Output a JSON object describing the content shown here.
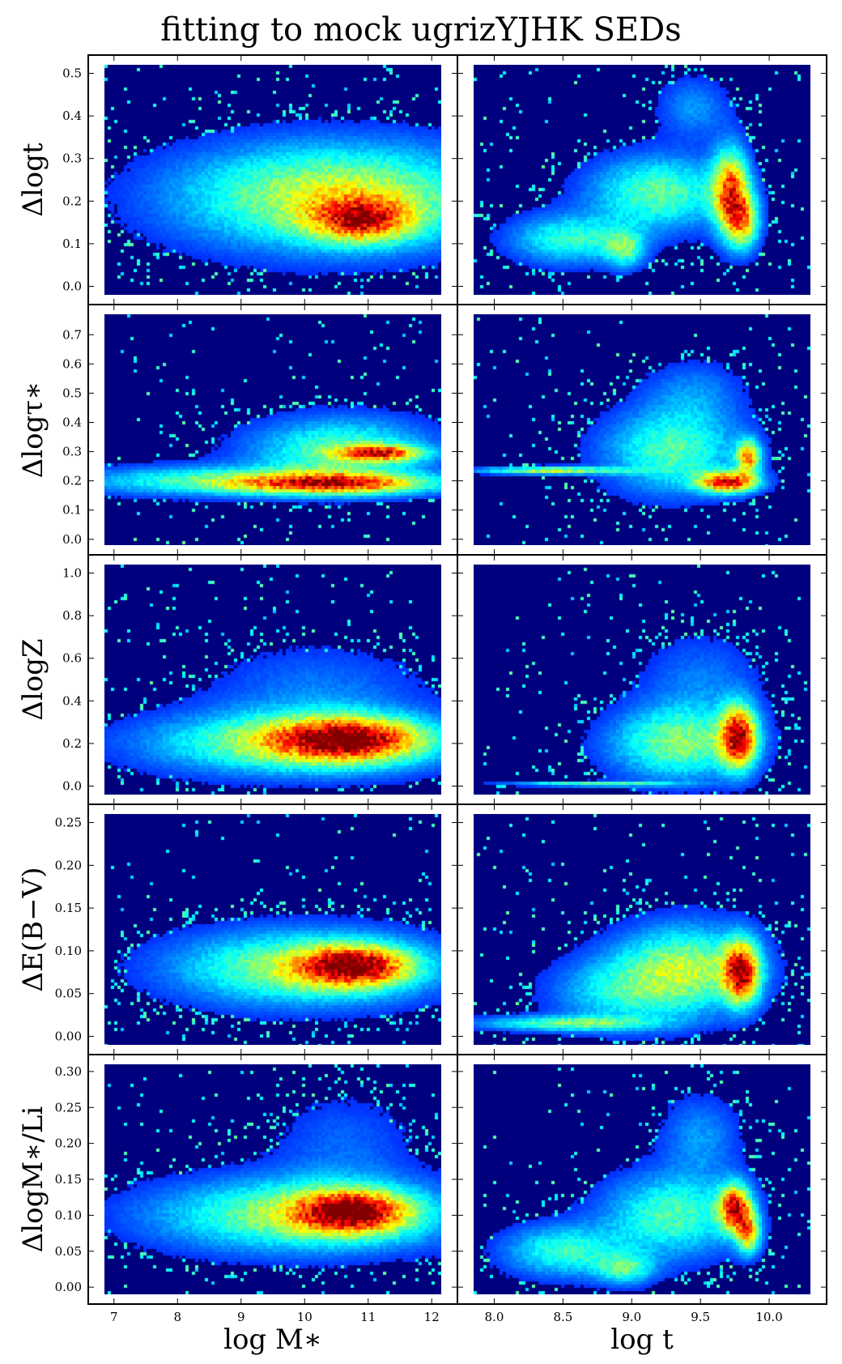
{
  "chart_data": {
    "title": "fitting to mock ugrizYJHK SEDs",
    "type": "heatmap",
    "colormap": [
      "#00007f",
      "#0000ff",
      "#00ffff",
      "#ffff00",
      "#ff0000",
      "#7f0000"
    ],
    "background": "#00007f",
    "grid": false,
    "columns": [
      {
        "xlabel": "log M∗",
        "xlim": [
          6.85,
          12.15
        ],
        "xticks": [
          7,
          8,
          9,
          10,
          11,
          12
        ],
        "xtick_labels": [
          "7",
          "8",
          "9",
          "10",
          "11",
          "12"
        ]
      },
      {
        "xlabel": "log t",
        "xlim": [
          7.85,
          10.3
        ],
        "xticks": [
          8.0,
          8.5,
          9.0,
          9.5,
          10.0
        ],
        "xtick_labels": [
          "8.0",
          "8.5",
          "9.0",
          "9.5",
          "10.0"
        ]
      }
    ],
    "rows": [
      {
        "ylabel": "Δlogt",
        "ylim": [
          -0.02,
          0.52
        ],
        "yticks": [
          0.0,
          0.1,
          0.2,
          0.3,
          0.4,
          0.5
        ],
        "ytick_labels": [
          "0.0",
          "0.1",
          "0.2",
          "0.3",
          "0.4",
          "0.5"
        ]
      },
      {
        "ylabel": "Δlogτ∗",
        "ylim": [
          -0.02,
          0.77
        ],
        "yticks": [
          0.0,
          0.1,
          0.2,
          0.3,
          0.4,
          0.5,
          0.6,
          0.7
        ],
        "ytick_labels": [
          "0.0",
          "0.1",
          "0.2",
          "0.3",
          "0.4",
          "0.5",
          "0.6",
          "0.7"
        ]
      },
      {
        "ylabel": "ΔlogZ",
        "ylim": [
          -0.04,
          1.04
        ],
        "yticks": [
          0.0,
          0.2,
          0.4,
          0.6,
          0.8,
          1.0
        ],
        "ytick_labels": [
          "0.0",
          "0.2",
          "0.4",
          "0.6",
          "0.8",
          "1.0"
        ]
      },
      {
        "ylabel": "ΔE(B−V)",
        "ylim": [
          -0.01,
          0.26
        ],
        "yticks": [
          0.0,
          0.05,
          0.1,
          0.15,
          0.2,
          0.25
        ],
        "ytick_labels": [
          "0.00",
          "0.05",
          "0.10",
          "0.15",
          "0.20",
          "0.25"
        ]
      },
      {
        "ylabel": "ΔlogM∗/Li",
        "ylim": [
          -0.01,
          0.31
        ],
        "yticks": [
          0.0,
          0.05,
          0.1,
          0.15,
          0.2,
          0.25,
          0.3
        ],
        "ytick_labels": [
          "0.00",
          "0.05",
          "0.10",
          "0.15",
          "0.20",
          "0.25",
          "0.30"
        ]
      }
    ],
    "panels": [
      {
        "row": 0,
        "col": 0,
        "blobs": [
          {
            "x": 10.5,
            "y": 0.21,
            "sx": 1.7,
            "sy": 0.085,
            "w": 0.48
          },
          {
            "x": 10.9,
            "y": 0.155,
            "sx": 0.55,
            "sy": 0.035,
            "w": 0.5
          }
        ]
      },
      {
        "row": 0,
        "col": 1,
        "blobs": [
          {
            "x": 9.72,
            "y": 0.22,
            "sx": 0.09,
            "sy": 0.07,
            "w": 0.62
          },
          {
            "x": 9.82,
            "y": 0.15,
            "sx": 0.08,
            "sy": 0.045,
            "w": 0.42
          },
          {
            "x": 9.2,
            "y": 0.22,
            "sx": 0.35,
            "sy": 0.06,
            "w": 0.35
          },
          {
            "x": 8.55,
            "y": 0.11,
            "sx": 0.3,
            "sy": 0.04,
            "w": 0.3
          },
          {
            "x": 8.95,
            "y": 0.085,
            "sx": 0.1,
            "sy": 0.03,
            "w": 0.28
          },
          {
            "x": 9.45,
            "y": 0.42,
            "sx": 0.18,
            "sy": 0.05,
            "w": 0.15
          }
        ]
      },
      {
        "row": 1,
        "col": 0,
        "blobs": [
          {
            "x": 10.5,
            "y": 0.19,
            "sx": 1.1,
            "sy": 0.025,
            "w": 0.6
          },
          {
            "x": 11.2,
            "y": 0.295,
            "sx": 0.45,
            "sy": 0.018,
            "w": 0.55
          },
          {
            "x": 8.5,
            "y": 0.2,
            "sx": 1.5,
            "sy": 0.035,
            "w": 0.3
          },
          {
            "x": 10.6,
            "y": 0.3,
            "sx": 1.0,
            "sy": 0.08,
            "w": 0.35
          }
        ]
      },
      {
        "row": 1,
        "col": 1,
        "blobs": [
          {
            "x": 9.7,
            "y": 0.195,
            "sx": 0.15,
            "sy": 0.025,
            "w": 0.7
          },
          {
            "x": 9.85,
            "y": 0.28,
            "sx": 0.06,
            "sy": 0.04,
            "w": 0.55
          },
          {
            "x": 9.3,
            "y": 0.3,
            "sx": 0.35,
            "sy": 0.1,
            "w": 0.33
          },
          {
            "x": 8.4,
            "y": 0.235,
            "sx": 0.35,
            "sy": 0.009,
            "w": 0.45
          },
          {
            "x": 9.45,
            "y": 0.5,
            "sx": 0.25,
            "sy": 0.08,
            "w": 0.13
          }
        ]
      },
      {
        "row": 2,
        "col": 0,
        "blobs": [
          {
            "x": 10.7,
            "y": 0.22,
            "sx": 0.8,
            "sy": 0.07,
            "w": 0.58
          },
          {
            "x": 9.9,
            "y": 0.2,
            "sx": 1.6,
            "sy": 0.1,
            "w": 0.42
          },
          {
            "x": 10.2,
            "y": 0.45,
            "sx": 1.2,
            "sy": 0.15,
            "w": 0.12
          }
        ]
      },
      {
        "row": 2,
        "col": 1,
        "blobs": [
          {
            "x": 9.78,
            "y": 0.23,
            "sx": 0.09,
            "sy": 0.1,
            "w": 0.72
          },
          {
            "x": 9.35,
            "y": 0.2,
            "sx": 0.35,
            "sy": 0.12,
            "w": 0.38
          },
          {
            "x": 8.7,
            "y": 0.01,
            "sx": 0.4,
            "sy": 0.008,
            "w": 0.35
          },
          {
            "x": 9.5,
            "y": 0.5,
            "sx": 0.3,
            "sy": 0.15,
            "w": 0.12
          }
        ]
      },
      {
        "row": 3,
        "col": 0,
        "blobs": [
          {
            "x": 10.8,
            "y": 0.082,
            "sx": 0.6,
            "sy": 0.016,
            "w": 0.62
          },
          {
            "x": 10.0,
            "y": 0.08,
            "sx": 1.4,
            "sy": 0.03,
            "w": 0.42
          }
        ]
      },
      {
        "row": 3,
        "col": 1,
        "blobs": [
          {
            "x": 9.8,
            "y": 0.075,
            "sx": 0.09,
            "sy": 0.025,
            "w": 0.7
          },
          {
            "x": 9.4,
            "y": 0.08,
            "sx": 0.35,
            "sy": 0.035,
            "w": 0.4
          },
          {
            "x": 8.5,
            "y": 0.015,
            "sx": 0.45,
            "sy": 0.006,
            "w": 0.32
          },
          {
            "x": 8.9,
            "y": 0.05,
            "sx": 0.35,
            "sy": 0.03,
            "w": 0.22
          }
        ]
      },
      {
        "row": 4,
        "col": 0,
        "blobs": [
          {
            "x": 10.75,
            "y": 0.105,
            "sx": 0.6,
            "sy": 0.02,
            "w": 0.62
          },
          {
            "x": 10.0,
            "y": 0.1,
            "sx": 1.6,
            "sy": 0.035,
            "w": 0.42
          },
          {
            "x": 10.6,
            "y": 0.2,
            "sx": 0.8,
            "sy": 0.05,
            "w": 0.1
          }
        ]
      },
      {
        "row": 4,
        "col": 1,
        "blobs": [
          {
            "x": 9.75,
            "y": 0.11,
            "sx": 0.08,
            "sy": 0.022,
            "w": 0.7
          },
          {
            "x": 9.85,
            "y": 0.075,
            "sx": 0.06,
            "sy": 0.02,
            "w": 0.48
          },
          {
            "x": 9.3,
            "y": 0.1,
            "sx": 0.35,
            "sy": 0.04,
            "w": 0.33
          },
          {
            "x": 8.5,
            "y": 0.05,
            "sx": 0.3,
            "sy": 0.025,
            "w": 0.3
          },
          {
            "x": 8.95,
            "y": 0.025,
            "sx": 0.15,
            "sy": 0.015,
            "w": 0.28
          },
          {
            "x": 9.5,
            "y": 0.21,
            "sx": 0.2,
            "sy": 0.04,
            "w": 0.15
          }
        ]
      }
    ]
  }
}
